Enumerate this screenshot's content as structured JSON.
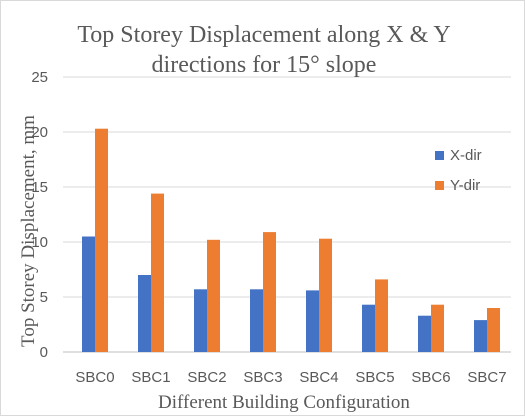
{
  "chart_data": {
    "type": "bar",
    "title_lines": [
      "Top Storey Displacement along X & Y",
      "directions for 15° slope"
    ],
    "xlabel": "Different Building Configuration",
    "ylabel": "Top Storey Displacement, mm",
    "categories": [
      "SBC0",
      "SBC1",
      "SBC2",
      "SBC3",
      "SBC4",
      "SBC5",
      "SBC6",
      "SBC7"
    ],
    "series": [
      {
        "name": "X-dir",
        "color": "#4472C4",
        "values": [
          10.5,
          7.0,
          5.7,
          5.7,
          5.6,
          4.3,
          3.3,
          2.9
        ]
      },
      {
        "name": "Y-dir",
        "color": "#ED7D31",
        "values": [
          20.3,
          14.4,
          10.2,
          10.9,
          10.3,
          6.6,
          4.3,
          4.0
        ]
      }
    ],
    "ylim": [
      0,
      25
    ],
    "yticks": [
      0,
      5,
      10,
      15,
      20,
      25
    ],
    "grid": true,
    "legend_position": "right"
  }
}
